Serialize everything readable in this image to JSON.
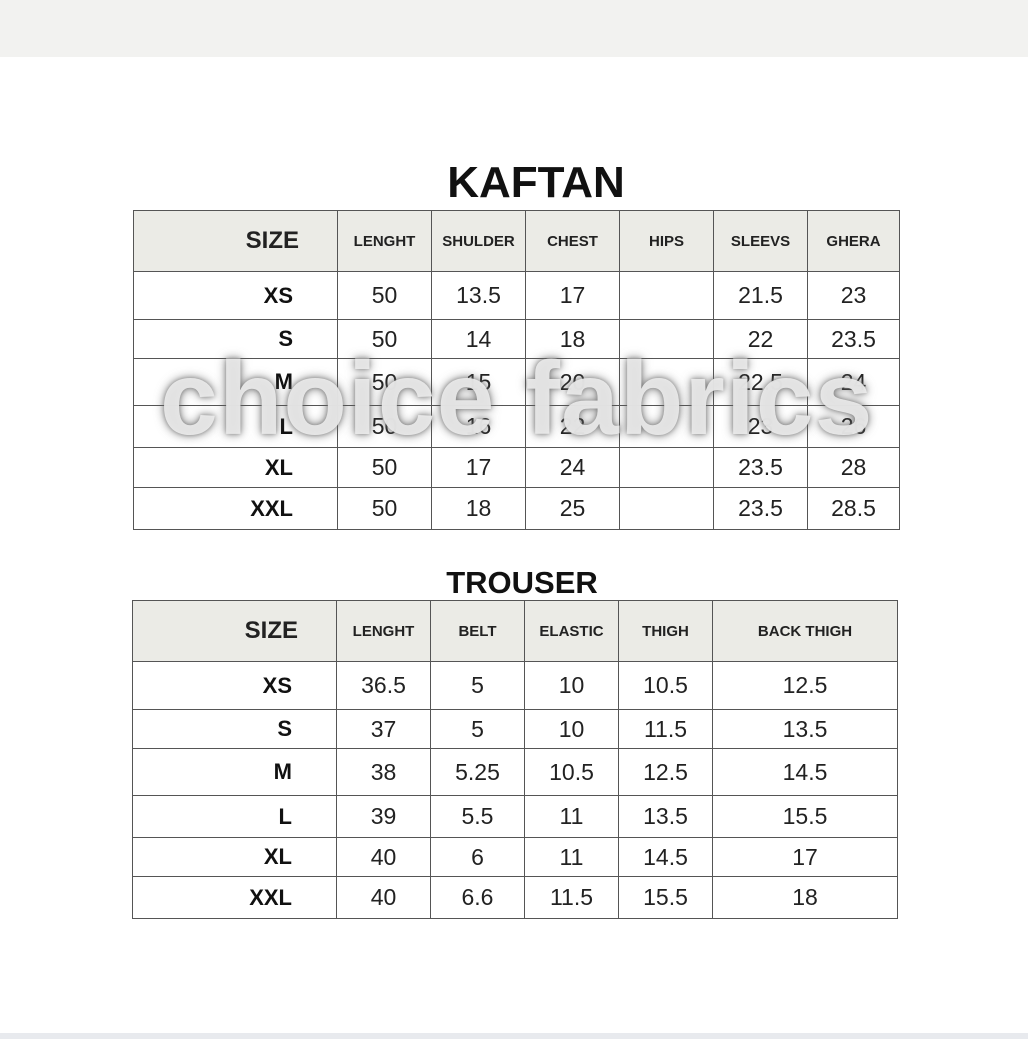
{
  "kaftan": {
    "title": "KAFTAN",
    "headers": [
      "SIZE",
      "LENGHT",
      "SHULDER",
      "CHEST",
      "HIPS",
      "SLEEVS",
      "GHERA"
    ],
    "rows": [
      [
        "XS",
        "50",
        "13.5",
        "17",
        "",
        "21.5",
        "23"
      ],
      [
        "S",
        "50",
        "14",
        "18",
        "",
        "22",
        "23.5"
      ],
      [
        "M",
        "50",
        "15",
        "20",
        "",
        "22.5",
        "24"
      ],
      [
        "L",
        "50",
        "16",
        "22",
        "",
        "23",
        "26"
      ],
      [
        "XL",
        "50",
        "17",
        "24",
        "",
        "23.5",
        "28"
      ],
      [
        "XXL",
        "50",
        "18",
        "25",
        "",
        "23.5",
        "28.5"
      ]
    ]
  },
  "trouser": {
    "title": "TROUSER",
    "headers": [
      "SIZE",
      "LENGHT",
      "BELT",
      "ELASTIC",
      "THIGH",
      "BACK THIGH"
    ],
    "rows": [
      [
        "XS",
        "36.5",
        "5",
        "10",
        "10.5",
        "12.5"
      ],
      [
        "S",
        "37",
        "5",
        "10",
        "11.5",
        "13.5"
      ],
      [
        "M",
        "38",
        "5.25",
        "10.5",
        "12.5",
        "14.5"
      ],
      [
        "L",
        "39",
        "5.5",
        "11",
        "13.5",
        "15.5"
      ],
      [
        "XL",
        "40",
        "6",
        "11",
        "14.5",
        "17"
      ],
      [
        "XXL",
        "40",
        "6.6",
        "11.5",
        "15.5",
        "18"
      ]
    ]
  },
  "watermark": "choice fabrics",
  "colors": {
    "header_bg": "#ebebe6",
    "top_bar": "#f2f2f0"
  }
}
